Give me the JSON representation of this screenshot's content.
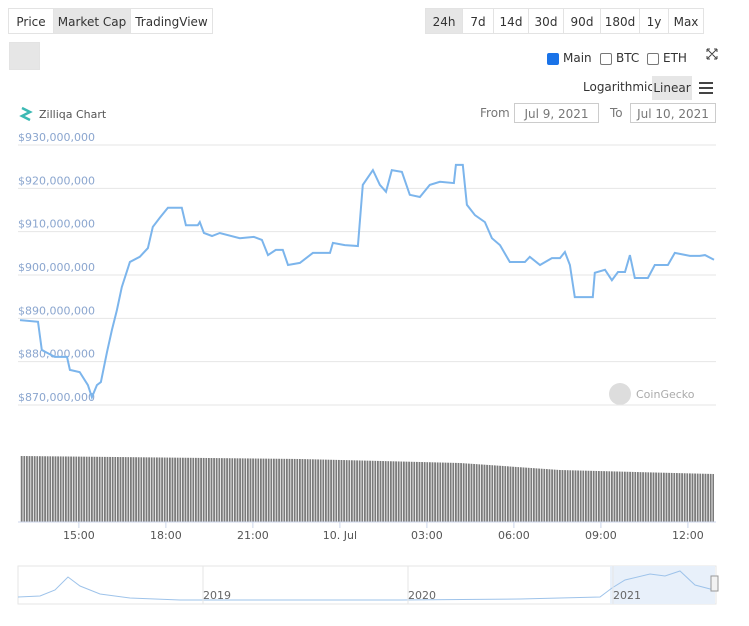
{
  "toolbar": {
    "views": [
      "Price",
      "Market Cap",
      "TradingView"
    ],
    "ranges": [
      "24h",
      "7d",
      "14d",
      "30d",
      "90d",
      "180d",
      "1y",
      "Max"
    ],
    "compare": [
      "Main",
      "BTC",
      "ETH"
    ],
    "scales": [
      "Logarithmic",
      "Linear"
    ],
    "from_label": "From",
    "from": "Jul 9, 2021",
    "to_label": "To",
    "to": "Jul 10, 2021"
  },
  "watermark": "CoinGecko",
  "navigator": {
    "labels": [
      "2019",
      "2020",
      "2021"
    ]
  },
  "chart_data": {
    "type": "line",
    "title": "Zilliqa Chart",
    "color": "#7cb5ec",
    "grid": true,
    "x": [
      12.97,
      13.59,
      13.72,
      14.17,
      14.59,
      14.69,
      15.03,
      15.31,
      15.45,
      15.62,
      15.76,
      15.97,
      16.14,
      16.31,
      16.48,
      16.76,
      17.1,
      17.38,
      17.55,
      17.79,
      18.07,
      18.55,
      18.69,
      19.1,
      19.17,
      19.31,
      19.59,
      19.86,
      20.55,
      21.03,
      21.31,
      21.52,
      21.79,
      22.03,
      22.21,
      22.62,
      23.07,
      23.66,
      23.76,
      24.17,
      24.62,
      24.79,
      25.14,
      25.38,
      25.59,
      25.79,
      26.14,
      26.41,
      26.76,
      27.1,
      27.45,
      27.93,
      28.0,
      28.24,
      28.38,
      28.66,
      29.0,
      29.24,
      29.52,
      29.86,
      30.38,
      30.55,
      30.9,
      31.31,
      31.59,
      31.76,
      31.93,
      32.1,
      32.72,
      32.79,
      33.14,
      33.38,
      33.59,
      33.83,
      34.0,
      34.17,
      34.62,
      34.86,
      35.31,
      35.55,
      36.07,
      36.41,
      36.59,
      36.9
    ],
    "values": [
      889600000,
      889200000,
      882700000,
      881100000,
      881100000,
      878100000,
      877600000,
      874600000,
      871800000,
      874600000,
      875300000,
      882200000,
      887300000,
      891900000,
      897200000,
      903000000,
      904200000,
      906200000,
      911100000,
      913200000,
      915500000,
      915500000,
      911500000,
      911500000,
      912200000,
      909700000,
      909000000,
      909700000,
      908500000,
      908800000,
      908100000,
      904600000,
      905800000,
      905800000,
      902300000,
      902800000,
      905100000,
      905100000,
      907400000,
      906900000,
      906700000,
      920800000,
      924200000,
      920800000,
      919200000,
      924200000,
      923800000,
      918500000,
      918000000,
      920800000,
      921500000,
      921200000,
      925400000,
      925400000,
      916200000,
      913800000,
      912200000,
      908500000,
      906900000,
      903000000,
      903000000,
      904200000,
      902300000,
      903900000,
      903900000,
      905300000,
      902300000,
      894900000,
      894900000,
      900500000,
      901200000,
      898800000,
      900700000,
      900700000,
      904600000,
      899300000,
      899300000,
      902300000,
      902300000,
      905100000,
      904400000,
      904400000,
      904600000,
      903500000
    ],
    "xlim": [
      12.97,
      36.9
    ],
    "xticks": [
      {
        "value": 15,
        "label": "15:00"
      },
      {
        "value": 18,
        "label": "18:00"
      },
      {
        "value": 21,
        "label": "21:00"
      },
      {
        "value": 24,
        "label": "10. Jul"
      },
      {
        "value": 27,
        "label": "03:00"
      },
      {
        "value": 30,
        "label": "06:00"
      },
      {
        "value": 33,
        "label": "09:00"
      },
      {
        "value": 36,
        "label": "12:00"
      }
    ],
    "ylim": [
      870000000,
      930000000
    ],
    "yticks": [
      {
        "value": 870000000,
        "label": "$870,000,000"
      },
      {
        "value": 880000000,
        "label": "$880,000,000"
      },
      {
        "value": 890000000,
        "label": "$890,000,000"
      },
      {
        "value": 900000000,
        "label": "$900,000,000"
      },
      {
        "value": 910000000,
        "label": "$910,000,000"
      },
      {
        "value": 920000000,
        "label": "$920,000,000"
      },
      {
        "value": 930000000,
        "label": "$930,000,000"
      }
    ]
  }
}
